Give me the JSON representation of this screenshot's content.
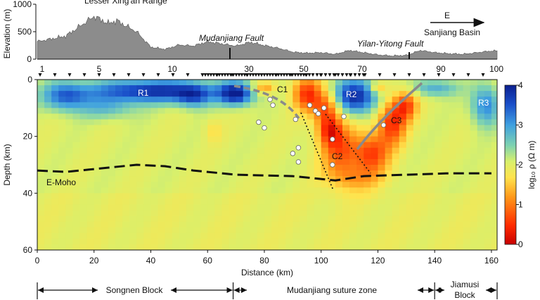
{
  "chart_data": [
    {
      "type": "area",
      "ylabel": "Elevation (m)",
      "ylim": [
        0,
        1000
      ],
      "y_ticks": [
        "0",
        "500",
        "1000"
      ],
      "x": [
        0,
        10,
        20,
        25,
        28,
        35,
        40,
        45,
        50,
        55,
        60,
        65,
        70,
        75,
        80,
        85,
        90,
        95,
        100,
        105,
        110,
        115,
        120,
        125,
        130,
        135,
        140,
        145,
        150,
        155,
        160
      ],
      "elevation": [
        320,
        420,
        780,
        650,
        700,
        500,
        220,
        180,
        260,
        240,
        320,
        280,
        240,
        310,
        250,
        200,
        130,
        110,
        120,
        90,
        160,
        120,
        80,
        60,
        70,
        160,
        120,
        100,
        90,
        120,
        150
      ],
      "annotations": {
        "range": "Lesser Xing'an Range",
        "fault_1": "Mudanjiang Fault",
        "fault_2": "Yilan-Yitong Fault",
        "direction": "E",
        "basin": "Sanjiang Basin"
      },
      "station_ticks": [
        "1",
        "5",
        "10",
        "30",
        "50",
        "70",
        "90",
        "100"
      ],
      "fill_color": "#8c8c8c"
    },
    {
      "type": "heatmap",
      "xlabel": "Distance (km)",
      "ylabel": "Depth (km)",
      "xlim": [
        0,
        162
      ],
      "ylim": [
        0,
        60
      ],
      "x_ticks": [
        "0",
        "20",
        "40",
        "60",
        "80",
        "100",
        "120",
        "140",
        "160"
      ],
      "y_ticks": [
        "0",
        "20",
        "40",
        "60"
      ],
      "colorbar": {
        "label": "log₁₀ ρ (Ω m)",
        "range": [
          0,
          4
        ],
        "ticks": [
          "0",
          "1",
          "2",
          "3",
          "4"
        ]
      },
      "background_log_rho": 2.05,
      "anomalies": [
        {
          "label": "R1",
          "x": 40,
          "z": 4,
          "log_rho": 3.8
        },
        {
          "label": "R2",
          "x": 112,
          "z": 6,
          "log_rho": 3.9
        },
        {
          "label": "R3",
          "x": 158,
          "z": 9,
          "log_rho": 3.2
        },
        {
          "label": "C1",
          "x": 91,
          "z": 5,
          "log_rho": 0.6
        },
        {
          "label": "C2",
          "x": 107,
          "z": 26,
          "log_rho": 0.7
        },
        {
          "label": "C3",
          "x": 125,
          "z": 15,
          "log_rho": 0.5
        }
      ],
      "moho_label": "E-Moho",
      "moho_depth": [
        [
          0,
          32
        ],
        [
          10,
          32.5
        ],
        [
          20,
          31.5
        ],
        [
          35,
          30
        ],
        [
          45,
          30.5
        ],
        [
          55,
          32
        ],
        [
          70,
          33.5
        ],
        [
          90,
          34
        ],
        [
          105,
          35.5
        ],
        [
          115,
          34
        ],
        [
          130,
          33.5
        ],
        [
          145,
          33
        ],
        [
          160,
          33
        ]
      ],
      "blocks": [
        "Songnen Block",
        "Mudanjiang suture zone",
        "Jiamusi Block"
      ],
      "block_bounds": [
        0,
        69,
        140,
        162
      ]
    }
  ]
}
